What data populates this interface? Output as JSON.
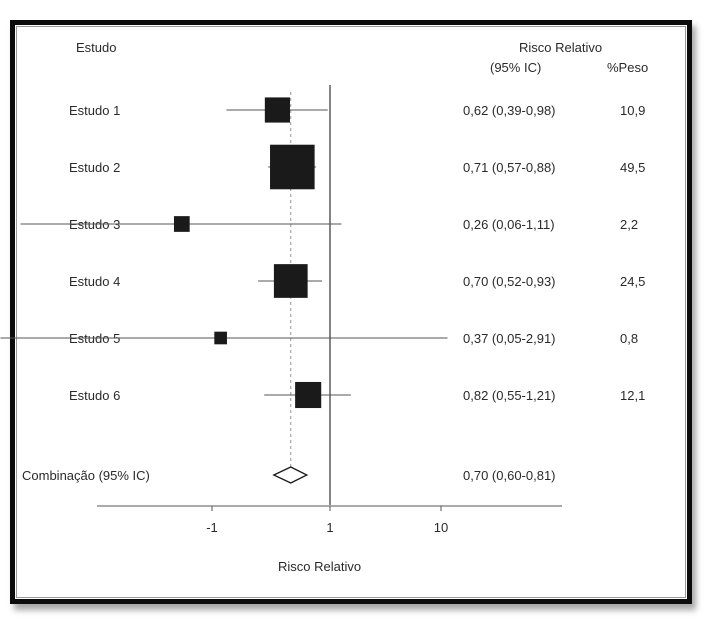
{
  "chart_data": {
    "type": "forest",
    "title": "",
    "xlabel": "Risco Relativo",
    "header_study": "Estudo",
    "header_rr": "Risco Relativo",
    "header_ci": "(95% IC)",
    "header_weight": "%Peso",
    "x_ticks": [
      "-1",
      "1",
      "10"
    ],
    "studies": [
      {
        "label": "Estudo 1",
        "rr": 0.62,
        "lower": 0.39,
        "upper": 0.98,
        "ci_text": "0,62 (0,39-0,98)",
        "weight": 10.9,
        "weight_text": "10,9"
      },
      {
        "label": "Estudo 2",
        "rr": 0.71,
        "lower": 0.57,
        "upper": 0.88,
        "ci_text": "0,71 (0,57-0,88)",
        "weight": 49.5,
        "weight_text": "49,5"
      },
      {
        "label": "Estudo 3",
        "rr": 0.26,
        "lower": 0.06,
        "upper": 1.11,
        "ci_text": "0,26 (0,06-1,11)",
        "weight": 2.2,
        "weight_text": "2,2"
      },
      {
        "label": "Estudo 4",
        "rr": 0.7,
        "lower": 0.52,
        "upper": 0.93,
        "ci_text": "0,70 (0,52-0,93)",
        "weight": 24.5,
        "weight_text": "24,5"
      },
      {
        "label": "Estudo 5",
        "rr": 0.37,
        "lower": 0.05,
        "upper": 2.91,
        "ci_text": "0,37 (0,05-2,91)",
        "weight": 0.8,
        "weight_text": "0,8"
      },
      {
        "label": "Estudo 6",
        "rr": 0.82,
        "lower": 0.55,
        "upper": 1.21,
        "ci_text": "0,82 (0,55-1,21)",
        "weight": 12.1,
        "weight_text": "12,1"
      }
    ],
    "pooled": {
      "label": "Combinação (95% IC)",
      "rr": 0.7,
      "lower": 0.6,
      "upper": 0.81,
      "ci_text": "0,70 (0,60-0,81)"
    },
    "colors": {
      "marker": "#1a1a1a",
      "line": "#555555",
      "ref_line": "#333333"
    }
  }
}
